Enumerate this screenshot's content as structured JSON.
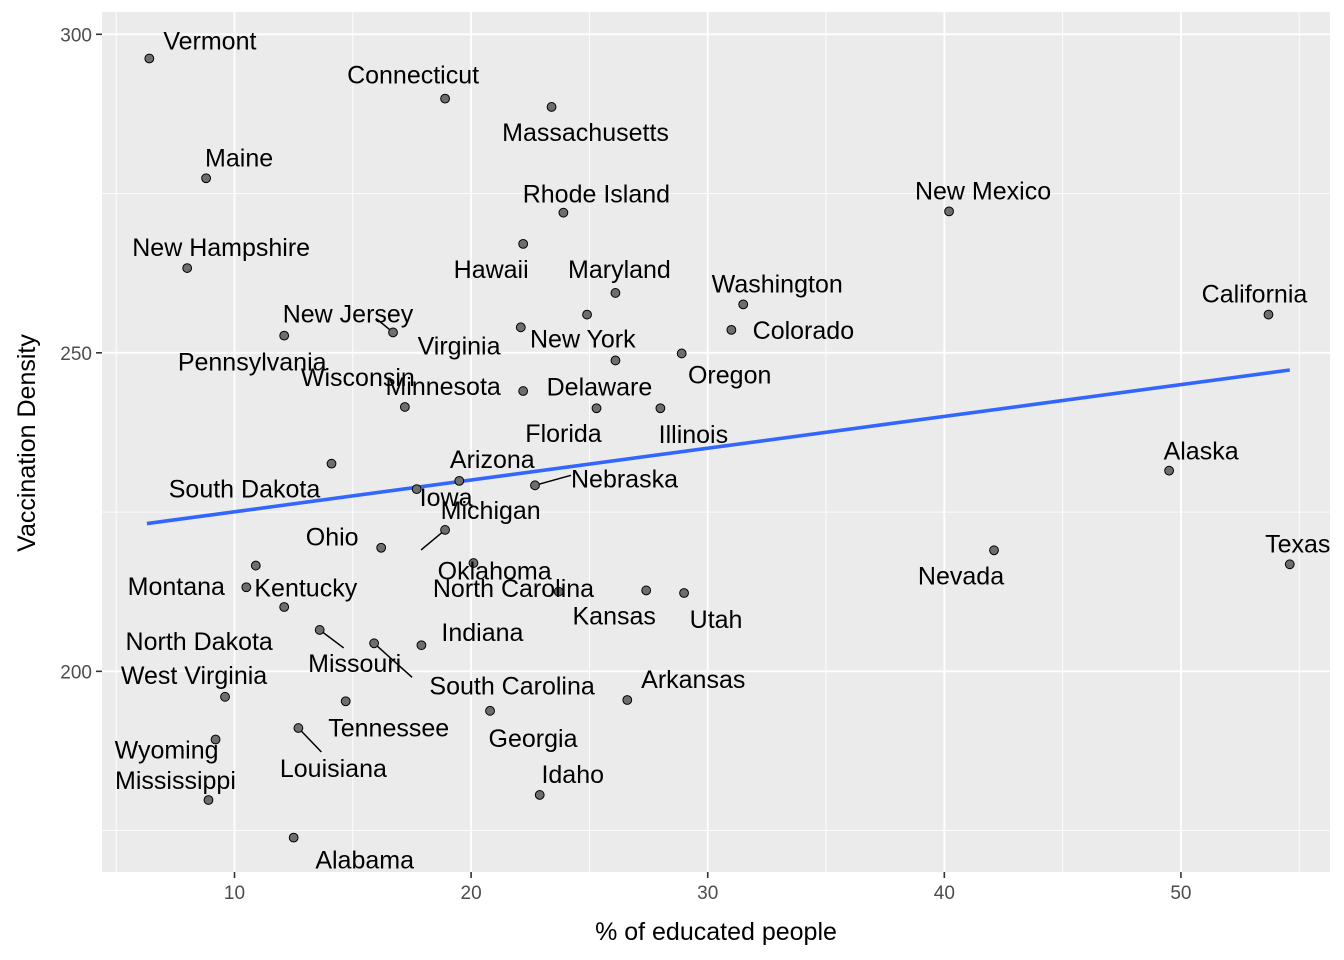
{
  "chart_data": {
    "type": "scatter",
    "xlabel": "% of educated people",
    "ylabel": "Vaccination Density",
    "xlim": [
      4.4,
      56.3
    ],
    "ylim": [
      168.5,
      303.5
    ],
    "x_ticks": [
      10,
      20,
      30,
      40,
      50
    ],
    "y_ticks": [
      200,
      250,
      300
    ],
    "grid": true,
    "background": "#ebebeb",
    "point_color": "#6e6e6e",
    "fit_line": {
      "color": "#3366ff",
      "points": [
        [
          6.3,
          223.2
        ],
        [
          54.6,
          247.3
        ]
      ]
    },
    "points": [
      {
        "label": "Vermont",
        "x": 6.4,
        "y": 296.2
      },
      {
        "label": "Connecticut",
        "x": 18.9,
        "y": 289.9
      },
      {
        "label": "Massachusetts",
        "x": 23.4,
        "y": 288.6
      },
      {
        "label": "Maine",
        "x": 8.8,
        "y": 277.4
      },
      {
        "label": "Rhode Island",
        "x": 23.9,
        "y": 272.0
      },
      {
        "label": "New Mexico",
        "x": 40.2,
        "y": 272.2
      },
      {
        "label": "Hawaii",
        "x": 22.2,
        "y": 267.1
      },
      {
        "label": "New Hampshire",
        "x": 8.0,
        "y": 263.3
      },
      {
        "label": "Maryland",
        "x": 26.1,
        "y": 259.4
      },
      {
        "label": "Washington",
        "x": 31.5,
        "y": 257.6
      },
      {
        "label": "California",
        "x": 53.7,
        "y": 256.0
      },
      {
        "label": "Virginia",
        "x": 24.9,
        "y": 256.0
      },
      {
        "label": "New Jersey",
        "x": 16.7,
        "y": 253.2
      },
      {
        "label": "Pennsylvania",
        "x": 12.1,
        "y": 252.7
      },
      {
        "label": "New York",
        "x": 22.1,
        "y": 254.0
      },
      {
        "label": "Colorado",
        "x": 31.0,
        "y": 253.6
      },
      {
        "label": "Oregon",
        "x": 28.9,
        "y": 249.9
      },
      {
        "label": "Delaware",
        "x": 26.1,
        "y": 248.8
      },
      {
        "label": "Minnesota",
        "x": 22.2,
        "y": 244.0
      },
      {
        "label": "Florida",
        "x": 25.3,
        "y": 241.3
      },
      {
        "label": "Illinois",
        "x": 28.0,
        "y": 241.3
      },
      {
        "label": "Wisconsin",
        "x": 17.2,
        "y": 241.5
      },
      {
        "label": "Alaska",
        "x": 49.5,
        "y": 231.5
      },
      {
        "label": "South Dakota",
        "x": 14.1,
        "y": 232.6
      },
      {
        "label": "Arizona",
        "x": 19.5,
        "y": 229.9
      },
      {
        "label": "Nebraska",
        "x": 22.7,
        "y": 229.2
      },
      {
        "label": "Michigan",
        "x": 17.7,
        "y": 228.6
      },
      {
        "label": "Iowa",
        "x": 18.9,
        "y": 222.2
      },
      {
        "label": "Texas",
        "x": 54.6,
        "y": 216.8
      },
      {
        "label": "Nevada",
        "x": 42.1,
        "y": 219.0
      },
      {
        "label": "Ohio",
        "x": 16.2,
        "y": 219.4
      },
      {
        "label": "North Carolina",
        "x": 20.1,
        "y": 217.0
      },
      {
        "label": "Kentucky",
        "x": 10.9,
        "y": 216.6
      },
      {
        "label": "Oklahoma",
        "x": 23.7,
        "y": 212.5
      },
      {
        "label": "Kansas",
        "x": 27.4,
        "y": 212.7
      },
      {
        "label": "Utah",
        "x": 29.0,
        "y": 212.3
      },
      {
        "label": "Montana",
        "x": 10.5,
        "y": 213.2
      },
      {
        "label": "North Dakota",
        "x": 12.1,
        "y": 210.1
      },
      {
        "label": "Missouri",
        "x": 13.6,
        "y": 206.5
      },
      {
        "label": "Indiana",
        "x": 17.9,
        "y": 204.1
      },
      {
        "label": "South Carolina",
        "x": 15.9,
        "y": 204.4
      },
      {
        "label": "Arkansas",
        "x": 26.6,
        "y": 195.5
      },
      {
        "label": "West Virginia",
        "x": 9.6,
        "y": 196.0
      },
      {
        "label": "Tennessee",
        "x": 14.7,
        "y": 195.3
      },
      {
        "label": "Georgia",
        "x": 20.8,
        "y": 193.8
      },
      {
        "label": "Louisiana",
        "x": 12.7,
        "y": 191.1
      },
      {
        "label": "Wyoming",
        "x": 9.2,
        "y": 189.3
      },
      {
        "label": "Idaho",
        "x": 22.9,
        "y": 180.6
      },
      {
        "label": "Mississippi",
        "x": 8.9,
        "y": 179.8
      },
      {
        "label": "Alabama",
        "x": 12.5,
        "y": 173.9
      }
    ]
  }
}
